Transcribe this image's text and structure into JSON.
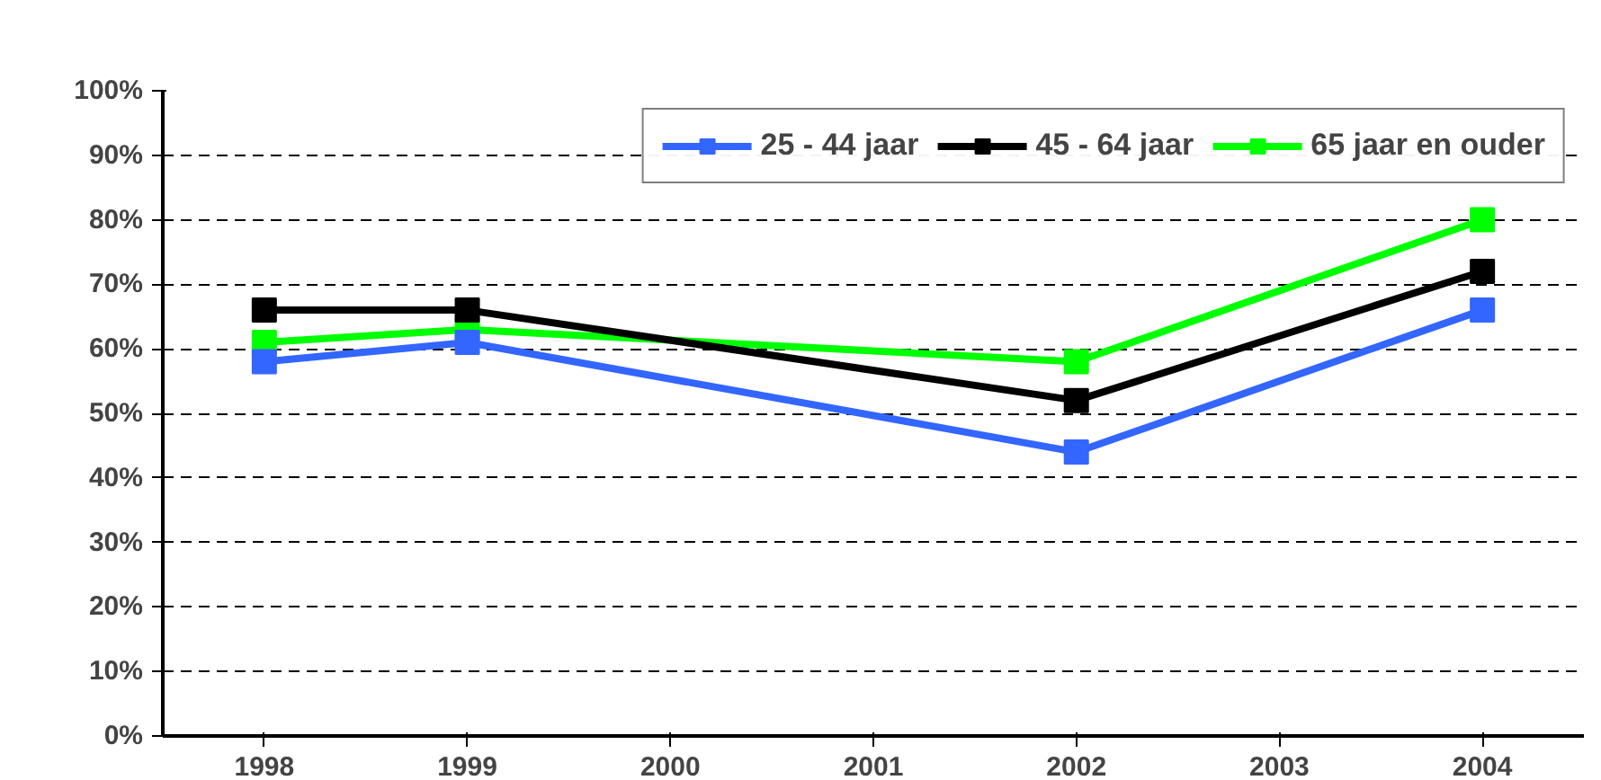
{
  "chart_data": {
    "type": "line",
    "categories": [
      "1998",
      "1999",
      "2000",
      "2001",
      "2002",
      "2003",
      "2004"
    ],
    "series": [
      {
        "name": "25 - 44 jaar",
        "color": "#3366ff",
        "values": [
          58,
          61,
          null,
          null,
          44,
          null,
          66
        ]
      },
      {
        "name": "45 - 64 jaar",
        "color": "#000000",
        "values": [
          66,
          66,
          null,
          null,
          52,
          null,
          72
        ]
      },
      {
        "name": "65 jaar en ouder",
        "color": "#00ff00",
        "values": [
          61,
          63,
          null,
          null,
          58,
          null,
          80
        ]
      }
    ],
    "ylim": [
      0,
      100
    ],
    "yticks": [
      {
        "value": 0,
        "label": "0%"
      },
      {
        "value": 10,
        "label": "10%"
      },
      {
        "value": 20,
        "label": "20%"
      },
      {
        "value": 30,
        "label": "30%"
      },
      {
        "value": 40,
        "label": "40%"
      },
      {
        "value": 50,
        "label": "50%"
      },
      {
        "value": 60,
        "label": "60%"
      },
      {
        "value": 70,
        "label": "70%"
      },
      {
        "value": 80,
        "label": "80%"
      },
      {
        "value": 90,
        "label": "90%"
      },
      {
        "value": 100,
        "label": "100%"
      }
    ],
    "grid": "y",
    "legend": "top right",
    "marker": "square",
    "line_style": "solid"
  }
}
